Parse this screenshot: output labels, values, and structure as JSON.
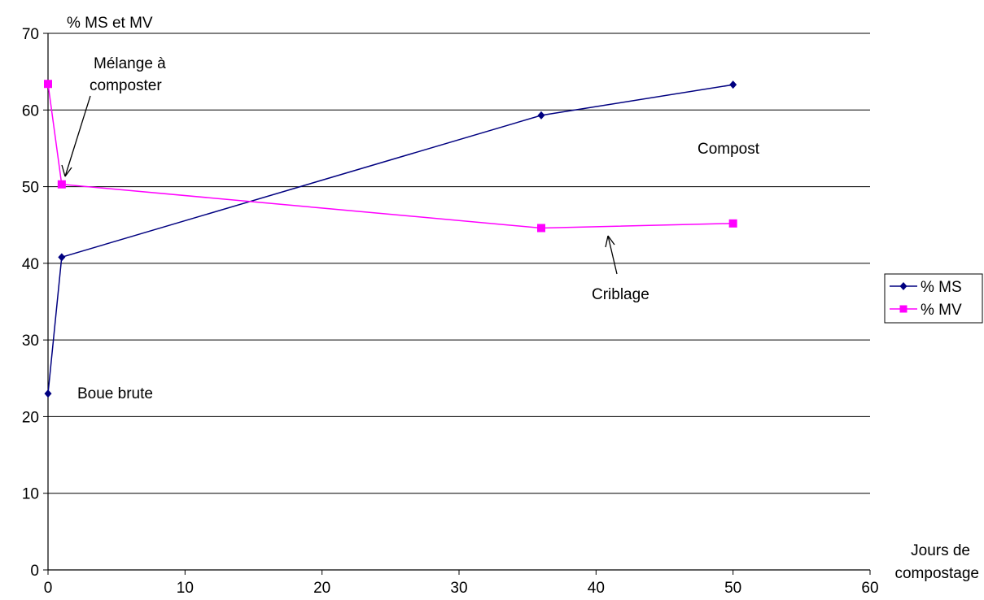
{
  "chart_data": {
    "type": "line",
    "ylabel": "% MS et MV",
    "xlabel_lines": [
      "Jours de",
      "compostage"
    ],
    "xlim": [
      0,
      60
    ],
    "ylim": [
      0,
      70
    ],
    "x_ticks": [
      0,
      10,
      20,
      30,
      40,
      50,
      60
    ],
    "y_ticks": [
      0,
      10,
      20,
      30,
      40,
      50,
      60,
      70
    ],
    "grid": "horizontal",
    "legend_position": "right",
    "series": [
      {
        "name": "% MS",
        "color": "#000080",
        "marker": "diamond",
        "x": [
          0,
          1,
          36,
          50
        ],
        "y": [
          23,
          40.8,
          59.3,
          63.3
        ]
      },
      {
        "name": "% MV",
        "color": "#ff00ff",
        "marker": "square",
        "x": [
          0,
          1,
          36,
          50
        ],
        "y": [
          63.4,
          50.3,
          44.6,
          45.2
        ]
      }
    ],
    "annotations": [
      {
        "lines": [
          "Mélange à",
          "composter"
        ]
      },
      {
        "lines": [
          "Compost"
        ]
      },
      {
        "lines": [
          "Criblage"
        ]
      },
      {
        "lines": [
          "Boue brute"
        ]
      }
    ]
  }
}
